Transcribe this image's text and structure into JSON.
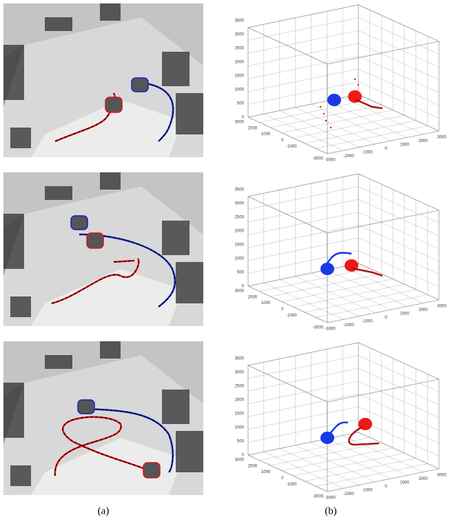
{
  "figure": {
    "panel_labels": [
      "(a)",
      "(b)"
    ],
    "plot_axes": {
      "z_ticks": [
        0,
        500,
        1000,
        1500,
        2000,
        2500,
        3000,
        3500
      ],
      "x_ticks": [
        3000,
        2000,
        1000,
        0,
        -1000,
        -3000
      ],
      "y_ticks": [
        -3000,
        -2000,
        -1000,
        0,
        1000,
        2000,
        3000
      ]
    }
  }
}
